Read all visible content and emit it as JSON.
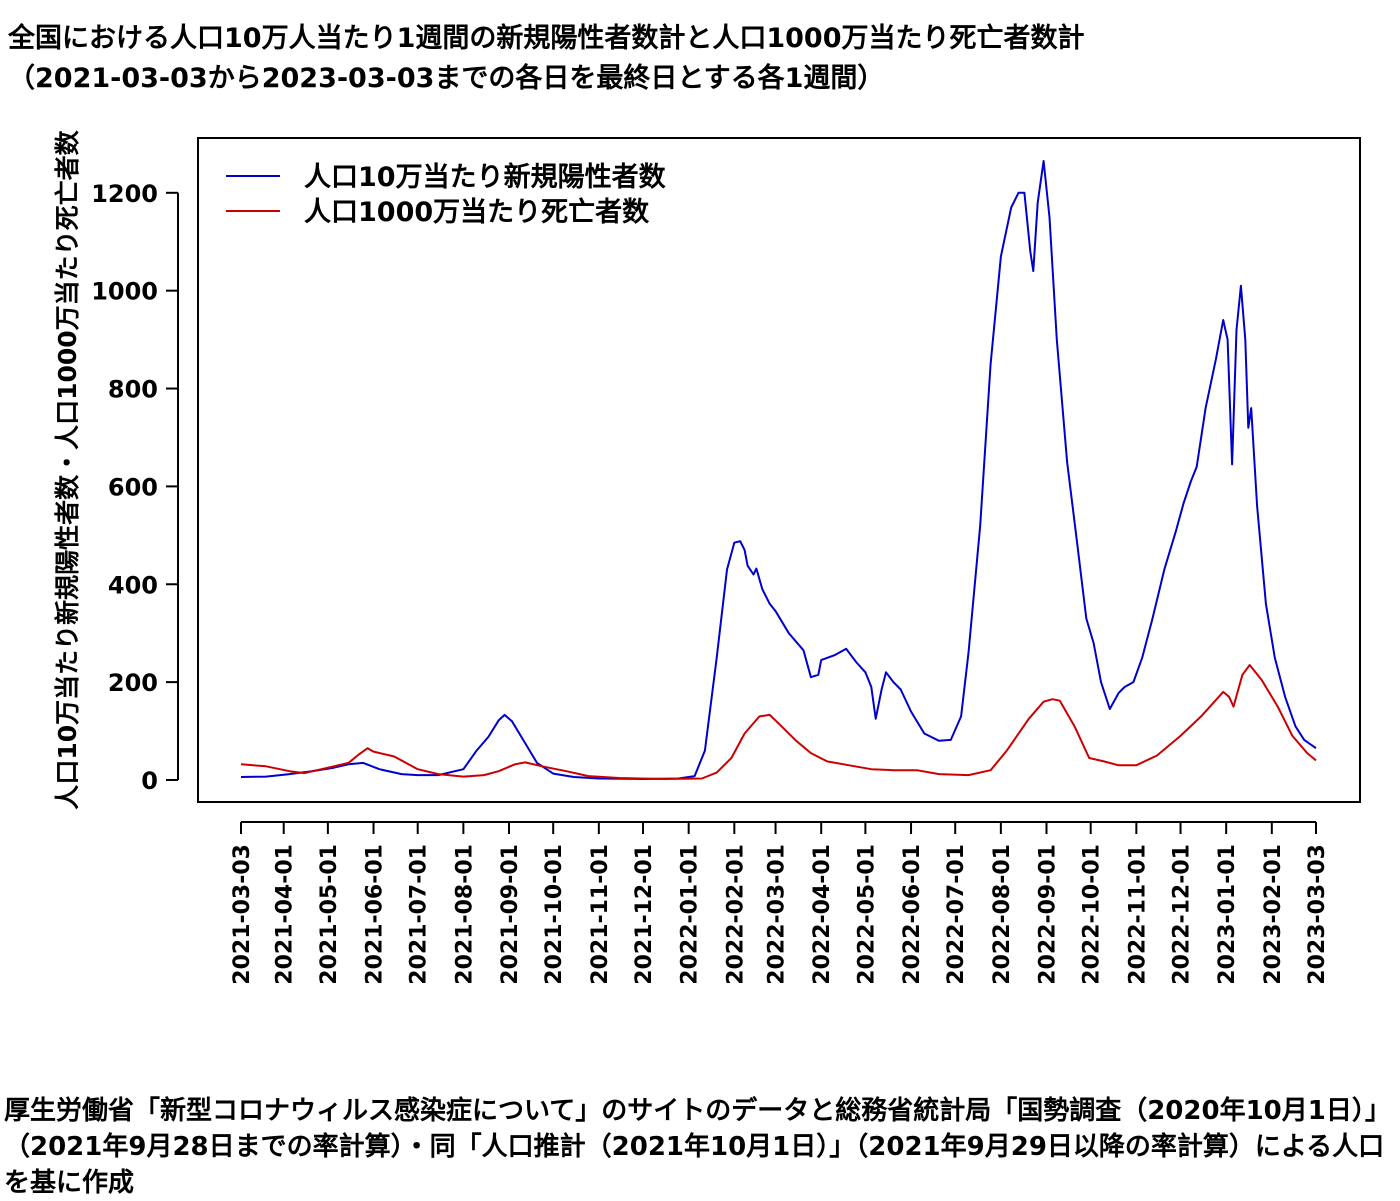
{
  "chart_data": {
    "type": "line",
    "title": "全国における人口10万人当たり1週間の新規陽性者数計と人口1000万当たり死亡者数計",
    "subtitle": "（2021-03-03から2023-03-03までの各日を最終日とする各1週間）",
    "ylabel": "人口10万当たり新規陽性者数・人口1000万当たり死亡者数",
    "xlabel": "",
    "ylim": [
      -45,
      1312
    ],
    "yticks": [
      0,
      200,
      400,
      600,
      800,
      1000,
      1200
    ],
    "xlim": [
      "2021-03-03",
      "2023-03-03"
    ],
    "xticks": [
      "2021-03-03",
      "2021-04-01",
      "2021-05-01",
      "2021-06-01",
      "2021-07-01",
      "2021-08-01",
      "2021-09-01",
      "2021-10-01",
      "2021-11-01",
      "2021-12-01",
      "2022-01-01",
      "2022-02-01",
      "2022-03-01",
      "2022-04-01",
      "2022-05-01",
      "2022-06-01",
      "2022-07-01",
      "2022-08-01",
      "2022-09-01",
      "2022-10-01",
      "2022-11-01",
      "2022-12-01",
      "2023-01-01",
      "2023-02-01",
      "2023-03-03"
    ],
    "legend_position": "top-left",
    "grid": false,
    "series": [
      {
        "name": "人口10万当たり新規陽性者数",
        "color": "#0000cc",
        "points": [
          [
            "2021-03-03",
            6
          ],
          [
            "2021-03-20",
            7
          ],
          [
            "2021-04-05",
            12
          ],
          [
            "2021-04-20",
            18
          ],
          [
            "2021-05-05",
            25
          ],
          [
            "2021-05-15",
            32
          ],
          [
            "2021-05-25",
            35
          ],
          [
            "2021-06-05",
            22
          ],
          [
            "2021-06-20",
            12
          ],
          [
            "2021-07-01",
            10
          ],
          [
            "2021-07-15",
            10
          ],
          [
            "2021-08-01",
            22
          ],
          [
            "2021-08-10",
            60
          ],
          [
            "2021-08-18",
            88
          ],
          [
            "2021-08-25",
            122
          ],
          [
            "2021-08-29",
            133
          ],
          [
            "2021-09-03",
            120
          ],
          [
            "2021-09-10",
            85
          ],
          [
            "2021-09-20",
            35
          ],
          [
            "2021-10-01",
            13
          ],
          [
            "2021-10-15",
            6
          ],
          [
            "2021-11-01",
            3
          ],
          [
            "2021-12-01",
            2
          ],
          [
            "2021-12-25",
            3
          ],
          [
            "2022-01-05",
            8
          ],
          [
            "2022-01-12",
            60
          ],
          [
            "2022-01-20",
            250
          ],
          [
            "2022-01-27",
            430
          ],
          [
            "2022-02-01",
            485
          ],
          [
            "2022-02-05",
            488
          ],
          [
            "2022-02-08",
            470
          ],
          [
            "2022-02-10",
            438
          ],
          [
            "2022-02-14",
            420
          ],
          [
            "2022-02-16",
            432
          ],
          [
            "2022-02-20",
            390
          ],
          [
            "2022-02-25",
            360
          ],
          [
            "2022-03-01",
            345
          ],
          [
            "2022-03-10",
            300
          ],
          [
            "2022-03-20",
            265
          ],
          [
            "2022-03-25",
            210
          ],
          [
            "2022-03-30",
            215
          ],
          [
            "2022-04-01",
            245
          ],
          [
            "2022-04-10",
            255
          ],
          [
            "2022-04-18",
            268
          ],
          [
            "2022-04-25",
            240
          ],
          [
            "2022-05-01",
            220
          ],
          [
            "2022-05-05",
            190
          ],
          [
            "2022-05-08",
            125
          ],
          [
            "2022-05-12",
            185
          ],
          [
            "2022-05-15",
            220
          ],
          [
            "2022-05-20",
            200
          ],
          [
            "2022-05-25",
            185
          ],
          [
            "2022-06-01",
            140
          ],
          [
            "2022-06-10",
            95
          ],
          [
            "2022-06-20",
            80
          ],
          [
            "2022-06-28",
            82
          ],
          [
            "2022-07-05",
            130
          ],
          [
            "2022-07-10",
            260
          ],
          [
            "2022-07-18",
            520
          ],
          [
            "2022-07-25",
            850
          ],
          [
            "2022-08-01",
            1070
          ],
          [
            "2022-08-08",
            1170
          ],
          [
            "2022-08-13",
            1200
          ],
          [
            "2022-08-17",
            1200
          ],
          [
            "2022-08-21",
            1080
          ],
          [
            "2022-08-23",
            1040
          ],
          [
            "2022-08-26",
            1180
          ],
          [
            "2022-08-30",
            1265
          ],
          [
            "2022-09-03",
            1150
          ],
          [
            "2022-09-08",
            900
          ],
          [
            "2022-09-15",
            650
          ],
          [
            "2022-09-22",
            480
          ],
          [
            "2022-09-28",
            330
          ],
          [
            "2022-10-03",
            280
          ],
          [
            "2022-10-08",
            200
          ],
          [
            "2022-10-14",
            145
          ],
          [
            "2022-10-20",
            178
          ],
          [
            "2022-10-24",
            190
          ],
          [
            "2022-10-30",
            200
          ],
          [
            "2022-11-05",
            250
          ],
          [
            "2022-11-12",
            330
          ],
          [
            "2022-11-20",
            430
          ],
          [
            "2022-11-28",
            510
          ],
          [
            "2022-12-03",
            565
          ],
          [
            "2022-12-08",
            610
          ],
          [
            "2022-12-12",
            640
          ],
          [
            "2022-12-18",
            760
          ],
          [
            "2022-12-25",
            860
          ],
          [
            "2022-12-30",
            940
          ],
          [
            "2023-01-02",
            900
          ],
          [
            "2023-01-05",
            645
          ],
          [
            "2023-01-08",
            920
          ],
          [
            "2023-01-11",
            1010
          ],
          [
            "2023-01-14",
            900
          ],
          [
            "2023-01-16",
            720
          ],
          [
            "2023-01-18",
            760
          ],
          [
            "2023-01-22",
            560
          ],
          [
            "2023-01-28",
            360
          ],
          [
            "2023-02-03",
            250
          ],
          [
            "2023-02-10",
            170
          ],
          [
            "2023-02-17",
            110
          ],
          [
            "2023-02-23",
            82
          ],
          [
            "2023-03-03",
            65
          ]
        ]
      },
      {
        "name": "人口1000万当たり死亡者数",
        "color": "#cc0000",
        "points": [
          [
            "2021-03-03",
            32
          ],
          [
            "2021-03-20",
            28
          ],
          [
            "2021-04-05",
            18
          ],
          [
            "2021-04-15",
            14
          ],
          [
            "2021-05-01",
            25
          ],
          [
            "2021-05-15",
            35
          ],
          [
            "2021-05-22",
            52
          ],
          [
            "2021-05-28",
            65
          ],
          [
            "2021-06-01",
            58
          ],
          [
            "2021-06-15",
            48
          ],
          [
            "2021-07-01",
            22
          ],
          [
            "2021-07-15",
            12
          ],
          [
            "2021-08-01",
            7
          ],
          [
            "2021-08-15",
            10
          ],
          [
            "2021-08-25",
            18
          ],
          [
            "2021-09-05",
            32
          ],
          [
            "2021-09-12",
            36
          ],
          [
            "2021-09-25",
            27
          ],
          [
            "2021-10-10",
            18
          ],
          [
            "2021-10-25",
            8
          ],
          [
            "2021-11-15",
            4
          ],
          [
            "2021-12-15",
            2
          ],
          [
            "2022-01-10",
            3
          ],
          [
            "2022-01-20",
            15
          ],
          [
            "2022-01-30",
            45
          ],
          [
            "2022-02-08",
            95
          ],
          [
            "2022-02-18",
            130
          ],
          [
            "2022-02-25",
            133
          ],
          [
            "2022-03-05",
            110
          ],
          [
            "2022-03-15",
            80
          ],
          [
            "2022-03-25",
            55
          ],
          [
            "2022-04-05",
            38
          ],
          [
            "2022-04-20",
            30
          ],
          [
            "2022-05-05",
            22
          ],
          [
            "2022-05-20",
            20
          ],
          [
            "2022-06-05",
            20
          ],
          [
            "2022-06-20",
            12
          ],
          [
            "2022-07-10",
            10
          ],
          [
            "2022-07-25",
            20
          ],
          [
            "2022-08-05",
            60
          ],
          [
            "2022-08-20",
            125
          ],
          [
            "2022-08-30",
            160
          ],
          [
            "2022-09-05",
            165
          ],
          [
            "2022-09-10",
            162
          ],
          [
            "2022-09-20",
            110
          ],
          [
            "2022-09-30",
            45
          ],
          [
            "2022-10-10",
            38
          ],
          [
            "2022-10-20",
            30
          ],
          [
            "2022-11-01",
            30
          ],
          [
            "2022-11-15",
            50
          ],
          [
            "2022-12-01",
            90
          ],
          [
            "2022-12-15",
            130
          ],
          [
            "2022-12-30",
            180
          ],
          [
            "2023-01-03",
            170
          ],
          [
            "2023-01-06",
            150
          ],
          [
            "2023-01-12",
            215
          ],
          [
            "2023-01-17",
            235
          ],
          [
            "2023-01-25",
            205
          ],
          [
            "2023-02-05",
            150
          ],
          [
            "2023-02-15",
            90
          ],
          [
            "2023-02-25",
            55
          ],
          [
            "2023-03-03",
            40
          ]
        ]
      }
    ]
  },
  "caption": "厚生労働省「新型コロナウィルス感染症について」のサイトのデータと総務省統計局「国勢調査（2020年10月1日）」（2021年9月28日までの率計算）・同「人口推計（2021年10月1日）」（2021年9月29日以降の率計算）による人口を基に作成"
}
